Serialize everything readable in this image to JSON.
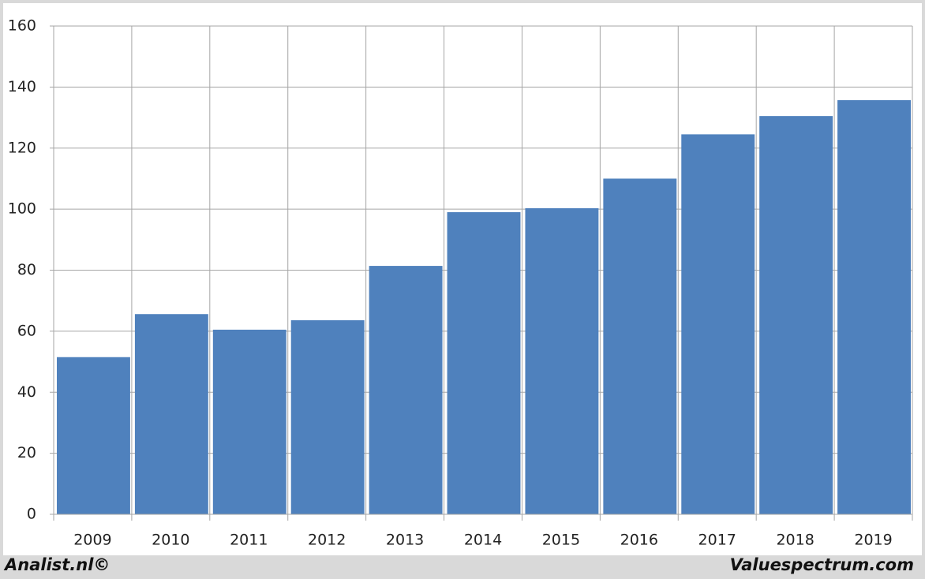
{
  "chart_data": {
    "type": "bar",
    "categories": [
      "2009",
      "2010",
      "2011",
      "2012",
      "2013",
      "2014",
      "2015",
      "2016",
      "2017",
      "2018",
      "2019"
    ],
    "values": [
      51.5,
      65.6,
      60.5,
      63.6,
      81.4,
      99,
      100.3,
      110,
      124.5,
      130.5,
      135.7
    ],
    "color": "#4f81bd",
    "ylim": [
      0,
      160
    ],
    "yticks": [
      0,
      20,
      40,
      60,
      80,
      100,
      120,
      140,
      160
    ],
    "grid": true,
    "annotations": [
      "Analist.nl©",
      "Valuespectrum.com"
    ]
  }
}
